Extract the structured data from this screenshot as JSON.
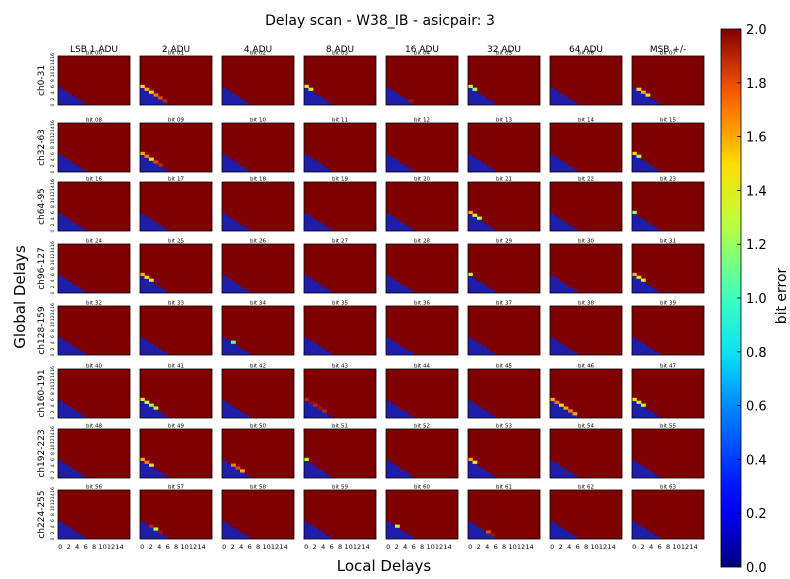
{
  "chart_data": {
    "type": "heatmap",
    "title": "Delay scan - W38_IB - asicpair: 3",
    "xlabel": "Local Delays",
    "ylabel": "Global Delays",
    "colorbar_label": "bit error",
    "colormap": "viridis",
    "vmin": 0.0,
    "vmax": 2.0,
    "colorbar_ticks": [
      "0.0",
      "0.2",
      "0.4",
      "0.6",
      "0.8",
      "1.0",
      "1.2",
      "1.4",
      "1.6",
      "1.8",
      "2.0"
    ],
    "x_ticks": [
      "0",
      "2",
      "4",
      "6",
      "8",
      "10",
      "12",
      "14"
    ],
    "y_ticks": [
      "0",
      "2",
      "4",
      "6",
      "8",
      "10",
      "12",
      "14",
      "16"
    ],
    "grid_shape": [
      16,
      17
    ],
    "column_titles": [
      "LSB 1 ADU",
      "2 ADU",
      "4 ADU",
      "8 ADU",
      "16 ADU",
      "32 ADU",
      "64 ADU",
      "MSB +/-"
    ],
    "row_titles": [
      "ch0-31",
      "ch32-63",
      "ch64-95",
      "ch96-127",
      "ch128-159",
      "ch160-191",
      "ch192-223",
      "ch224-255"
    ],
    "panel_titles": [
      "bit 00",
      "bit 01",
      "bit 02",
      "bit 03",
      "bit 04",
      "bit 05",
      "bit 06",
      "bit 07",
      "bit 08",
      "bit 09",
      "bit 10",
      "bit 11",
      "bit 12",
      "bit 13",
      "bit 14",
      "bit 15",
      "bit 16",
      "bit 17",
      "bit 18",
      "bit 19",
      "bit 20",
      "bit 21",
      "bit 22",
      "bit 23",
      "bit 24",
      "bit 25",
      "bit 26",
      "bit 27",
      "bit 28",
      "bit 29",
      "bit 30",
      "bit 31",
      "bit 32",
      "bit 33",
      "bit 34",
      "bit 35",
      "bit 36",
      "bit 37",
      "bit 38",
      "bit 39",
      "bit 40",
      "bit 41",
      "bit 42",
      "bit 43",
      "bit 44",
      "bit 45",
      "bit 46",
      "bit 47",
      "bit 48",
      "bit 49",
      "bit 50",
      "bit 51",
      "bit 52",
      "bit 53",
      "bit 54",
      "bit 55",
      "bit 56",
      "bit 57",
      "bit 58",
      "bit 59",
      "bit 60",
      "bit 61",
      "bit 62",
      "bit 63"
    ],
    "pattern": {
      "description_values": "bit error 0 below the boundary, 2 above it; boundary cells listed per panel",
      "zero_below_global_at_local": [
        6,
        5,
        4,
        3,
        2,
        1,
        0
      ],
      "error_above_value": 2.0,
      "transition_cells": {
        "bit 01": [
          [
            0,
            6,
            1.5
          ],
          [
            1,
            5,
            1.6
          ],
          [
            2,
            4,
            1.5
          ],
          [
            3,
            3,
            1.7
          ],
          [
            4,
            2,
            1.8
          ],
          [
            5,
            1,
            1.9
          ]
        ],
        "bit 03": [
          [
            0,
            6,
            1.5
          ],
          [
            1,
            5,
            1.4
          ]
        ],
        "bit 04": [
          [
            5,
            1,
            1.95
          ]
        ],
        "bit 05": [
          [
            0,
            6,
            1.3
          ],
          [
            1,
            5,
            1.2
          ]
        ],
        "bit 07": [
          [
            1,
            5,
            1.5
          ],
          [
            2,
            4,
            1.6
          ],
          [
            3,
            3,
            1.4
          ]
        ],
        "bit 09": [
          [
            0,
            6,
            1.6
          ],
          [
            1,
            5,
            1.7
          ],
          [
            2,
            4,
            1.5
          ],
          [
            3,
            3,
            1.8
          ],
          [
            4,
            2,
            1.9
          ]
        ],
        "bit 15": [
          [
            0,
            6,
            1.5
          ],
          [
            1,
            5,
            1.3
          ]
        ],
        "bit 21": [
          [
            0,
            6,
            1.6
          ],
          [
            1,
            5,
            1.4
          ],
          [
            2,
            4,
            1.3
          ]
        ],
        "bit 23": [
          [
            0,
            6,
            1.2
          ]
        ],
        "bit 25": [
          [
            0,
            6,
            1.6
          ],
          [
            1,
            5,
            1.5
          ],
          [
            2,
            4,
            1.4
          ]
        ],
        "bit 29": [
          [
            0,
            6,
            1.3
          ]
        ],
        "bit 31": [
          [
            0,
            6,
            1.6
          ],
          [
            1,
            5,
            1.5
          ],
          [
            2,
            4,
            1.4
          ]
        ],
        "bit 34": [
          [
            2,
            4,
            1.1
          ]
        ],
        "bit 41": [
          [
            0,
            6,
            1.4
          ],
          [
            1,
            5,
            1.3
          ],
          [
            2,
            4,
            1.2
          ],
          [
            3,
            3,
            1.3
          ]
        ],
        "bit 43": [
          [
            0,
            6,
            1.9
          ],
          [
            1,
            5,
            1.95
          ],
          [
            2,
            4,
            1.9
          ],
          [
            3,
            3,
            1.95
          ],
          [
            4,
            2,
            1.9
          ]
        ],
        "bit 46": [
          [
            0,
            6,
            1.6
          ],
          [
            1,
            5,
            1.7
          ],
          [
            2,
            4,
            1.5
          ],
          [
            3,
            3,
            1.6
          ],
          [
            4,
            2,
            1.7
          ],
          [
            5,
            1,
            1.6
          ]
        ],
        "bit 47": [
          [
            0,
            6,
            1.5
          ],
          [
            1,
            5,
            1.4
          ],
          [
            2,
            4,
            1.3
          ]
        ],
        "bit 49": [
          [
            0,
            6,
            1.6
          ],
          [
            1,
            5,
            1.7
          ],
          [
            2,
            4,
            1.5
          ]
        ],
        "bit 50": [
          [
            2,
            4,
            1.7
          ],
          [
            3,
            3,
            1.8
          ],
          [
            4,
            2,
            1.6
          ]
        ],
        "bit 51": [
          [
            0,
            6,
            1.3
          ]
        ],
        "bit 53": [
          [
            0,
            6,
            1.6
          ],
          [
            1,
            5,
            1.4
          ]
        ],
        "bit 57": [
          [
            2,
            4,
            1.9
          ],
          [
            3,
            3,
            1.3
          ],
          [
            4,
            2,
            1.95
          ]
        ],
        "bit 60": [
          [
            2,
            4,
            1.3
          ]
        ],
        "bit 61": [
          [
            4,
            2,
            1.8
          ],
          [
            5,
            1,
            1.95
          ]
        ]
      }
    }
  }
}
